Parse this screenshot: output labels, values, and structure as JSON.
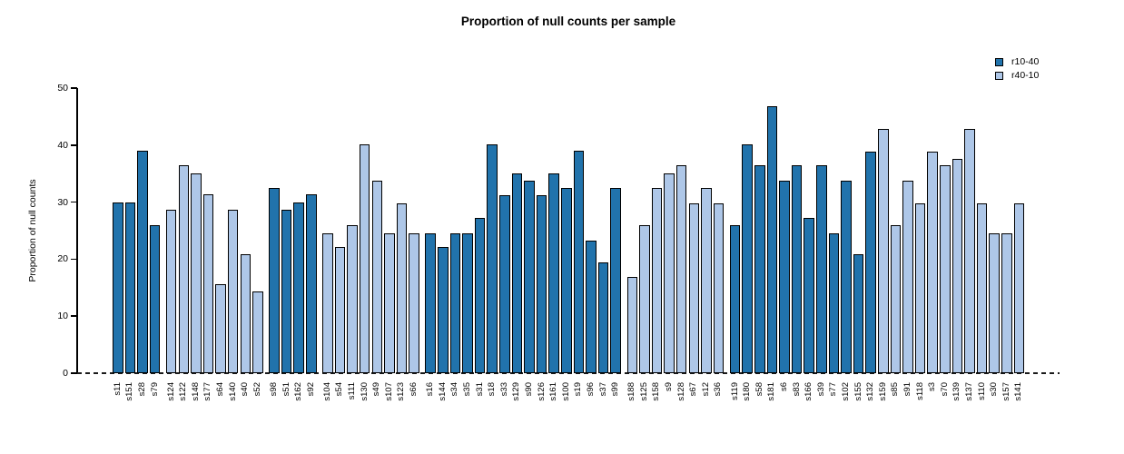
{
  "chart_data": {
    "type": "bar",
    "title": "Proportion of null counts per sample",
    "ylabel": "Proportion of null counts",
    "xlabel": "",
    "ylim": [
      0,
      50
    ],
    "yticks": [
      0,
      10,
      20,
      30,
      40,
      50
    ],
    "grid": false,
    "zero_line_style": "dashed-black",
    "legend_position": "top-right",
    "bar_border_color": "#000000",
    "legend": [
      {
        "label": "r10-40",
        "color": "#2173AC"
      },
      {
        "label": "r40-10",
        "color": "#AEC7E8"
      }
    ],
    "categories": [
      "s11",
      "s151",
      "s28",
      "s79",
      "s124",
      "s122",
      "s148",
      "s177",
      "s64",
      "s140",
      "s40",
      "s52",
      "s98",
      "s51",
      "s162",
      "s92",
      "s104",
      "s54",
      "s111",
      "s130",
      "s49",
      "s107",
      "s123",
      "s66",
      "s16",
      "s144",
      "s34",
      "s35",
      "s31",
      "s18",
      "s33",
      "s129",
      "s90",
      "s126",
      "s161",
      "s100",
      "s19",
      "s96",
      "s37",
      "s99",
      "s188",
      "s125",
      "s158",
      "s9",
      "s128",
      "s67",
      "s12",
      "s36",
      "s119",
      "s180",
      "s58",
      "s181",
      "s6",
      "s83",
      "s166",
      "s39",
      "s77",
      "s102",
      "s155",
      "s132",
      "s159",
      "s85",
      "s91",
      "s118",
      "s3",
      "s70",
      "s139",
      "s137",
      "s110",
      "s30",
      "s157",
      "s141"
    ],
    "values": [
      29.9,
      29.9,
      39.0,
      26.0,
      28.6,
      36.4,
      35.0,
      31.3,
      15.6,
      28.6,
      20.8,
      14.3,
      32.5,
      28.6,
      29.9,
      31.3,
      24.6,
      22.1,
      26.0,
      40.1,
      33.8,
      24.6,
      29.8,
      24.6,
      24.6,
      22.1,
      24.6,
      24.6,
      27.3,
      40.1,
      31.2,
      35.0,
      33.8,
      31.2,
      35.0,
      32.5,
      39.0,
      23.3,
      19.5,
      32.5,
      16.9,
      26.0,
      32.5,
      35.0,
      36.4,
      29.8,
      32.5,
      29.8,
      26.0,
      40.2,
      36.4,
      46.8,
      33.8,
      36.4,
      27.3,
      36.4,
      24.6,
      33.8,
      20.8,
      38.9,
      42.8,
      26.0,
      33.8,
      29.8,
      38.9,
      36.4,
      37.6,
      42.8,
      29.8,
      24.6,
      24.6,
      29.8
    ],
    "bar_groups": [
      "r10-40",
      "r10-40",
      "r10-40",
      "r10-40",
      "r40-10",
      "r40-10",
      "r40-10",
      "r40-10",
      "r40-10",
      "r40-10",
      "r40-10",
      "r40-10",
      "r10-40",
      "r10-40",
      "r10-40",
      "r10-40",
      "r40-10",
      "r40-10",
      "r40-10",
      "r40-10",
      "r40-10",
      "r40-10",
      "r40-10",
      "r40-10",
      "r10-40",
      "r10-40",
      "r10-40",
      "r10-40",
      "r10-40",
      "r10-40",
      "r10-40",
      "r10-40",
      "r10-40",
      "r10-40",
      "r10-40",
      "r10-40",
      "r10-40",
      "r10-40",
      "r10-40",
      "r10-40",
      "r40-10",
      "r40-10",
      "r40-10",
      "r40-10",
      "r40-10",
      "r40-10",
      "r40-10",
      "r40-10",
      "r10-40",
      "r10-40",
      "r10-40",
      "r10-40",
      "r10-40",
      "r10-40",
      "r10-40",
      "r10-40",
      "r10-40",
      "r10-40",
      "r10-40",
      "r10-40",
      "r40-10",
      "r40-10",
      "r40-10",
      "r40-10",
      "r40-10",
      "r40-10",
      "r40-10",
      "r40-10",
      "r40-10",
      "r40-10",
      "r40-10",
      "r40-10"
    ],
    "group_gap_after_indices": [
      3,
      11,
      15,
      23,
      39,
      47
    ]
  }
}
